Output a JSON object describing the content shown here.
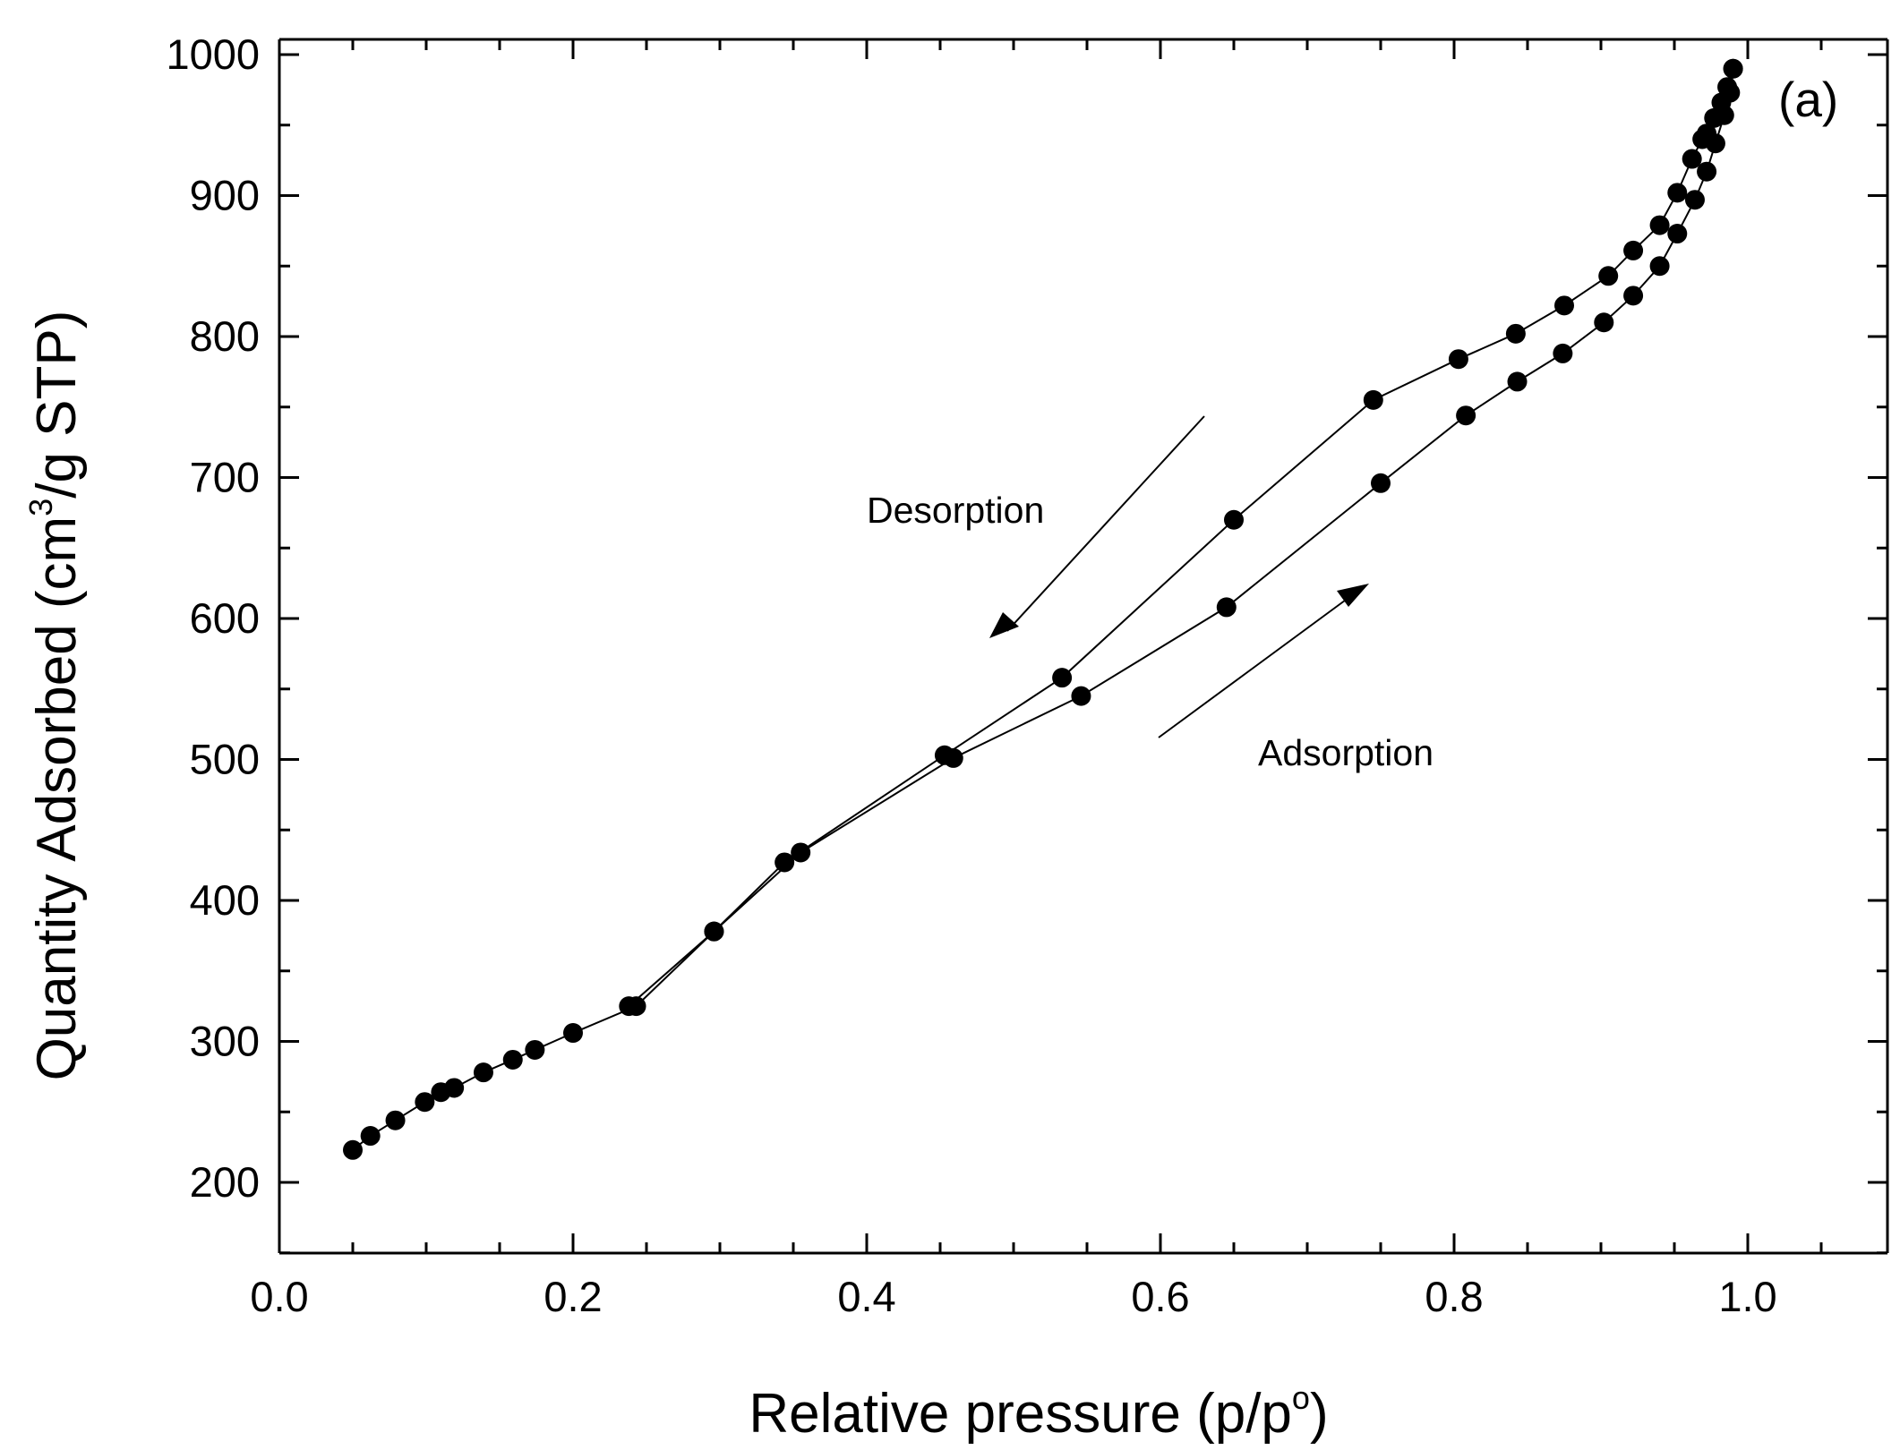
{
  "chart_data": {
    "type": "scatter",
    "title": "",
    "xlabel": "Relative pressure (p/p°)",
    "xlabel_main": "Relative pressure (p/p",
    "xlabel_sup": "o",
    "xlabel_close": ")",
    "ylabel": "Quantity Adsorbed (cm³/g STP)",
    "ylabel_main": "Quantity Adsorbed (cm",
    "ylabel_sup": "3",
    "ylabel_end": "/g STP)",
    "xlim": [
      0.0,
      1.1
    ],
    "ylim": [
      150,
      1000
    ],
    "xticks": [
      0.0,
      0.2,
      0.4,
      0.6,
      0.8,
      1.0
    ],
    "xtick_labels": [
      "0.0",
      "0.2",
      "0.4",
      "0.6",
      "0.8",
      "1.0"
    ],
    "yticks": [
      200,
      300,
      400,
      500,
      600,
      700,
      800,
      900,
      1000
    ],
    "ytick_labels": [
      "200",
      "300",
      "400",
      "500",
      "600",
      "700",
      "800",
      "900",
      "1000"
    ],
    "grid": false,
    "panel_label": "(a)",
    "annotations": {
      "desorption": "Desorption",
      "adsorption": "Adsorption"
    },
    "colors": {
      "marker": "#000000",
      "line": "#000000",
      "background": "#ffffff"
    },
    "series": [
      {
        "name": "Adsorption",
        "x": [
          0.05,
          0.062,
          0.079,
          0.099,
          0.11,
          0.119,
          0.139,
          0.159,
          0.174,
          0.2,
          0.243,
          0.296,
          0.355,
          0.459,
          0.546,
          0.645,
          0.75,
          0.808,
          0.843,
          0.874,
          0.902,
          0.922,
          0.94,
          0.952,
          0.964,
          0.972,
          0.978,
          0.984,
          0.988,
          0.99
        ],
        "y": [
          223,
          233,
          244,
          257,
          264,
          267,
          278,
          287,
          294,
          306,
          325,
          378,
          434,
          501,
          545,
          608,
          696,
          744,
          768,
          788,
          810,
          829,
          850,
          873,
          897,
          917,
          937,
          957,
          973,
          990
        ]
      },
      {
        "name": "Desorption",
        "x": [
          0.99,
          0.986,
          0.982,
          0.977,
          0.972,
          0.969,
          0.962,
          0.952,
          0.94,
          0.922,
          0.905,
          0.875,
          0.842,
          0.803,
          0.745,
          0.65,
          0.533,
          0.453,
          0.344,
          0.296,
          0.238
        ],
        "y": [
          990,
          977,
          966,
          955,
          944,
          940,
          926,
          902,
          879,
          861,
          843,
          822,
          802,
          784,
          755,
          670,
          558,
          503,
          427,
          378,
          325
        ]
      }
    ]
  }
}
